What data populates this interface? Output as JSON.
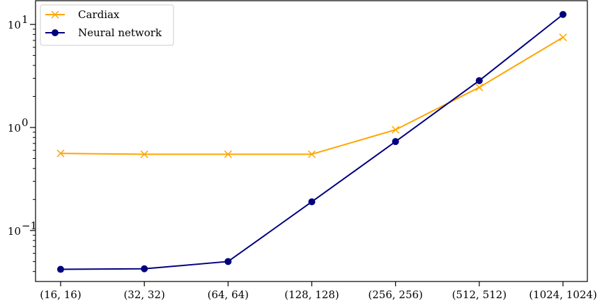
{
  "chart_data": {
    "type": "line",
    "categories": [
      "(16, 16)",
      "(32, 32)",
      "(64, 64)",
      "(128, 128)",
      "(256, 256)",
      "(512, 512)",
      "(1024, 1024)"
    ],
    "yscale": "log",
    "ylim": [
      0.032,
      17
    ],
    "y_ticks": [
      {
        "value": 0.1,
        "base": "10",
        "exp": "−1"
      },
      {
        "value": 1,
        "base": "10",
        "exp": "0"
      },
      {
        "value": 10,
        "base": "10",
        "exp": "1"
      }
    ],
    "grid": false,
    "legend": "top-left",
    "series": [
      {
        "name": "Cardiax",
        "color": "#FFA500",
        "marker": "x",
        "values": [
          0.56,
          0.55,
          0.55,
          0.55,
          0.95,
          2.45,
          7.5
        ]
      },
      {
        "name": "Neural network",
        "color": "#00007F",
        "marker": "circle",
        "values": [
          0.042,
          0.0425,
          0.05,
          0.19,
          0.73,
          2.85,
          12.5
        ]
      }
    ]
  }
}
